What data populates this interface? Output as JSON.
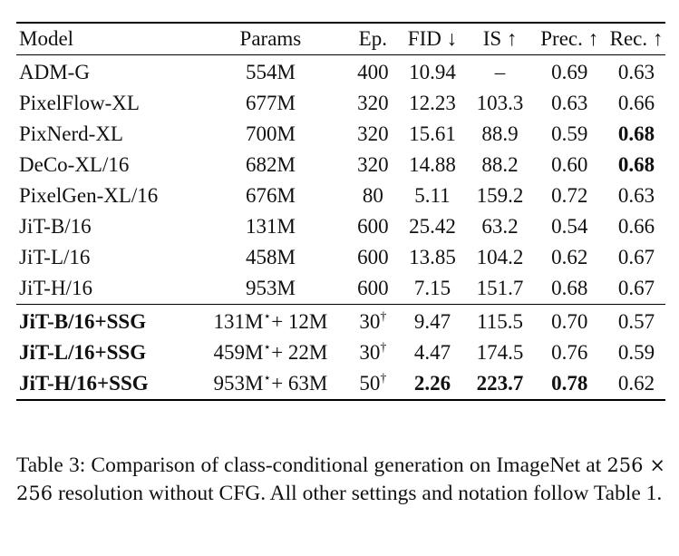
{
  "table": {
    "headers": [
      "Model",
      "Params",
      "Ep.",
      "FID ↓",
      "IS ↑",
      "Prec. ↑",
      "Rec. ↑"
    ],
    "baseline_rows": [
      {
        "model": "ADM-G",
        "params": "554M",
        "params_sup": "",
        "params_extra": "",
        "ep": "400",
        "ep_sup": "",
        "fid": "10.94",
        "is": "–",
        "prec": "0.69",
        "rec": "0.63"
      },
      {
        "model": "PixelFlow-XL",
        "params": "677M",
        "params_sup": "",
        "params_extra": "",
        "ep": "320",
        "ep_sup": "",
        "fid": "12.23",
        "is": "103.3",
        "prec": "0.63",
        "rec": "0.66"
      },
      {
        "model": "PixNerd-XL",
        "params": "700M",
        "params_sup": "",
        "params_extra": "",
        "ep": "320",
        "ep_sup": "",
        "fid": "15.61",
        "is": "88.9",
        "prec": "0.59",
        "rec": "0.68"
      },
      {
        "model": "DeCo-XL/16",
        "params": "682M",
        "params_sup": "",
        "params_extra": "",
        "ep": "320",
        "ep_sup": "",
        "fid": "14.88",
        "is": "88.2",
        "prec": "0.60",
        "rec": "0.68"
      },
      {
        "model": "PixelGen-XL/16",
        "params": "676M",
        "params_sup": "",
        "params_extra": "",
        "ep": "80",
        "ep_sup": "",
        "fid": "5.11",
        "is": "159.2",
        "prec": "0.72",
        "rec": "0.63"
      },
      {
        "model": "JiT-B/16",
        "params": "131M",
        "params_sup": "",
        "params_extra": "",
        "ep": "600",
        "ep_sup": "",
        "fid": "25.42",
        "is": "63.2",
        "prec": "0.54",
        "rec": "0.66"
      },
      {
        "model": "JiT-L/16",
        "params": "458M",
        "params_sup": "",
        "params_extra": "",
        "ep": "600",
        "ep_sup": "",
        "fid": "13.85",
        "is": "104.2",
        "prec": "0.62",
        "rec": "0.67"
      },
      {
        "model": "JiT-H/16",
        "params": "953M",
        "params_sup": "",
        "params_extra": "",
        "ep": "600",
        "ep_sup": "",
        "fid": "7.15",
        "is": "151.7",
        "prec": "0.68",
        "rec": "0.67"
      }
    ],
    "ours_rows": [
      {
        "model": "JiT-B/16+SSG",
        "params": "131M",
        "params_sup": "⋆",
        "params_extra": "+ 12M",
        "ep": "30",
        "ep_sup": "†",
        "fid": "9.47",
        "is": "115.5",
        "prec": "0.70",
        "rec": "0.57"
      },
      {
        "model": "JiT-L/16+SSG",
        "params": "459M",
        "params_sup": "⋆",
        "params_extra": "+ 22M",
        "ep": "30",
        "ep_sup": "†",
        "fid": "4.47",
        "is": "174.5",
        "prec": "0.76",
        "rec": "0.59"
      },
      {
        "model": "JiT-H/16+SSG",
        "params": "953M",
        "params_sup": "⋆",
        "params_extra": "+ 63M",
        "ep": "50",
        "ep_sup": "†",
        "fid": "2.26",
        "is": "223.7",
        "prec": "0.78",
        "rec": "0.62"
      }
    ]
  },
  "caption": {
    "part1": "Table 3: Comparison of class-conditional generation on ImageNet at ",
    "math": "256 × 256",
    "part2": " resolution without CFG. All other settings and notation follow Table 1."
  }
}
